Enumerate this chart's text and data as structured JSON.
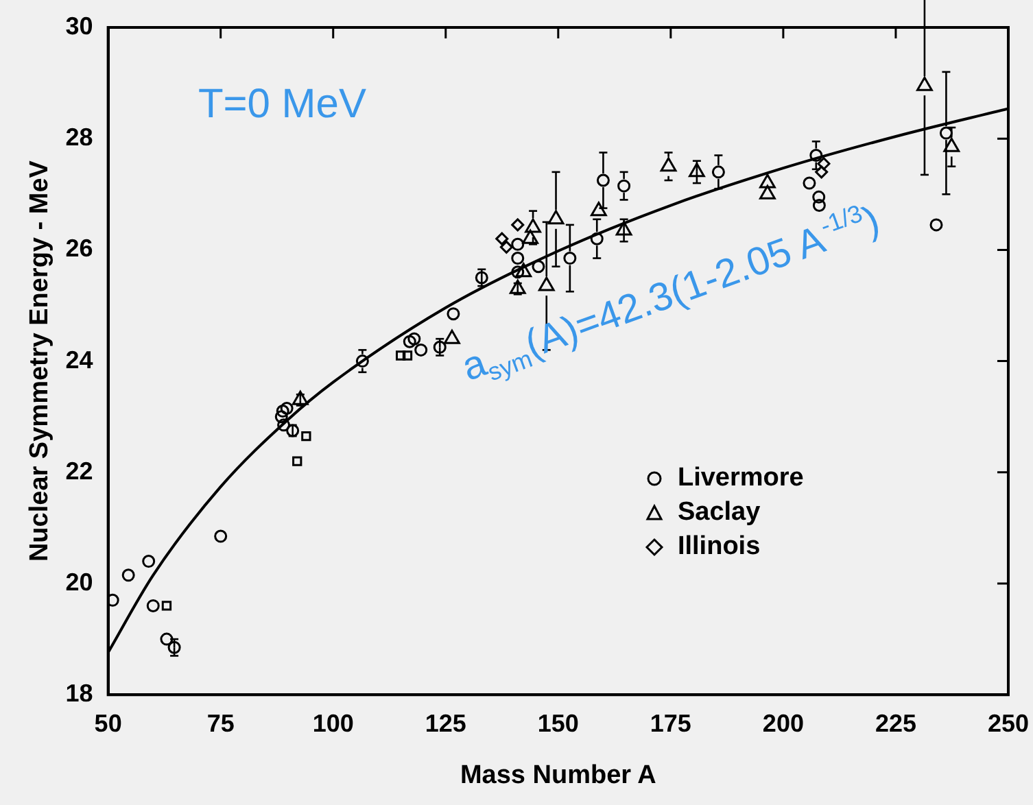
{
  "chart_data": {
    "type": "scatter",
    "xlabel": "Mass Number A",
    "ylabel": "Nuclear Symmetry Energy - MeV",
    "xlim": [
      50,
      250
    ],
    "xticks": [
      50,
      75,
      100,
      125,
      150,
      175,
      200,
      225,
      250
    ],
    "ylim": [
      18,
      30
    ],
    "yticks": [
      18,
      20,
      22,
      24,
      26,
      28,
      30
    ],
    "grid": false,
    "legend": "bottom right",
    "annotations": [
      "T=0 MeV",
      "a$_{sym}$(A)=42.3(1-2.05 A$^{-1/3}$)"
    ],
    "series": [
      {
        "name": "Livermore",
        "type": "scatter",
        "marker": "circle",
        "color": "#000000",
        "x": [
          51,
          54.5,
          59,
          60,
          63,
          64.7,
          75,
          88.5,
          89,
          89.7,
          88.8,
          91,
          106.5,
          117,
          118,
          119.5,
          123.7,
          126.7,
          133,
          141,
          141,
          141,
          145.6,
          152.6,
          158.6,
          160,
          164.6,
          185.6,
          207.3,
          205.8,
          207.9,
          208,
          234,
          236.2
        ],
        "values": [
          19.7,
          20.15,
          20.4,
          19.6,
          19.0,
          18.85,
          20.85,
          23.0,
          22.85,
          23.15,
          23.1,
          22.75,
          24.0,
          24.35,
          24.4,
          24.2,
          24.25,
          24.85,
          25.5,
          26.1,
          25.85,
          25.6,
          25.7,
          25.85,
          26.2,
          27.25,
          27.15,
          27.4,
          27.7,
          27.2,
          26.95,
          26.8,
          26.45,
          28.1
        ],
        "errors": [
          null,
          null,
          null,
          null,
          null,
          0.15,
          null,
          null,
          null,
          null,
          null,
          0.1,
          0.2,
          null,
          null,
          null,
          0.15,
          null,
          0.15,
          null,
          null,
          null,
          null,
          0.6,
          0.35,
          0.5,
          0.25,
          0.3,
          0.25,
          null,
          null,
          null,
          null,
          1.1
        ]
      },
      {
        "name": "Saclay",
        "type": "scatter",
        "marker": "triangle",
        "color": "#000000",
        "x": [
          92.7,
          126.4,
          141,
          142.3,
          143.8,
          144.4,
          147.4,
          149.5,
          159,
          164.6,
          174.5,
          180.8,
          196.5,
          196.5,
          231.4,
          237.4
        ],
        "values": [
          23.3,
          24.4,
          25.3,
          25.6,
          26.2,
          26.4,
          25.35,
          26.55,
          26.7,
          26.35,
          27.5,
          27.4,
          27.2,
          27.0,
          28.95,
          27.85
        ],
        "errors": [
          0.1,
          null,
          0.1,
          null,
          null,
          0.3,
          1.15,
          0.85,
          null,
          0.2,
          0.25,
          0.2,
          null,
          null,
          1.6,
          0.35
        ]
      },
      {
        "type": "scatter",
        "marker": "square",
        "color": "#000000",
        "x": [
          63,
          92,
          94,
          115,
          116.5
        ],
        "values": [
          19.6,
          22.2,
          22.65,
          24.1,
          24.1
        ]
      },
      {
        "name": "Illinois",
        "type": "scatter",
        "marker": "diamond",
        "color": "#000000",
        "x": [
          137.5,
          138.5,
          141,
          208.5,
          209
        ],
        "values": [
          26.2,
          26.05,
          26.45,
          27.4,
          27.55
        ]
      },
      {
        "type": "line",
        "marker": "none",
        "color": "#000000",
        "x": [
          50,
          60,
          75,
          90,
          100,
          125,
          150,
          175,
          200,
          225,
          250
        ],
        "values": [
          18.76,
          20.15,
          21.74,
          22.95,
          23.62,
          24.96,
          25.98,
          26.8,
          27.47,
          28.04,
          28.54
        ]
      }
    ]
  }
}
